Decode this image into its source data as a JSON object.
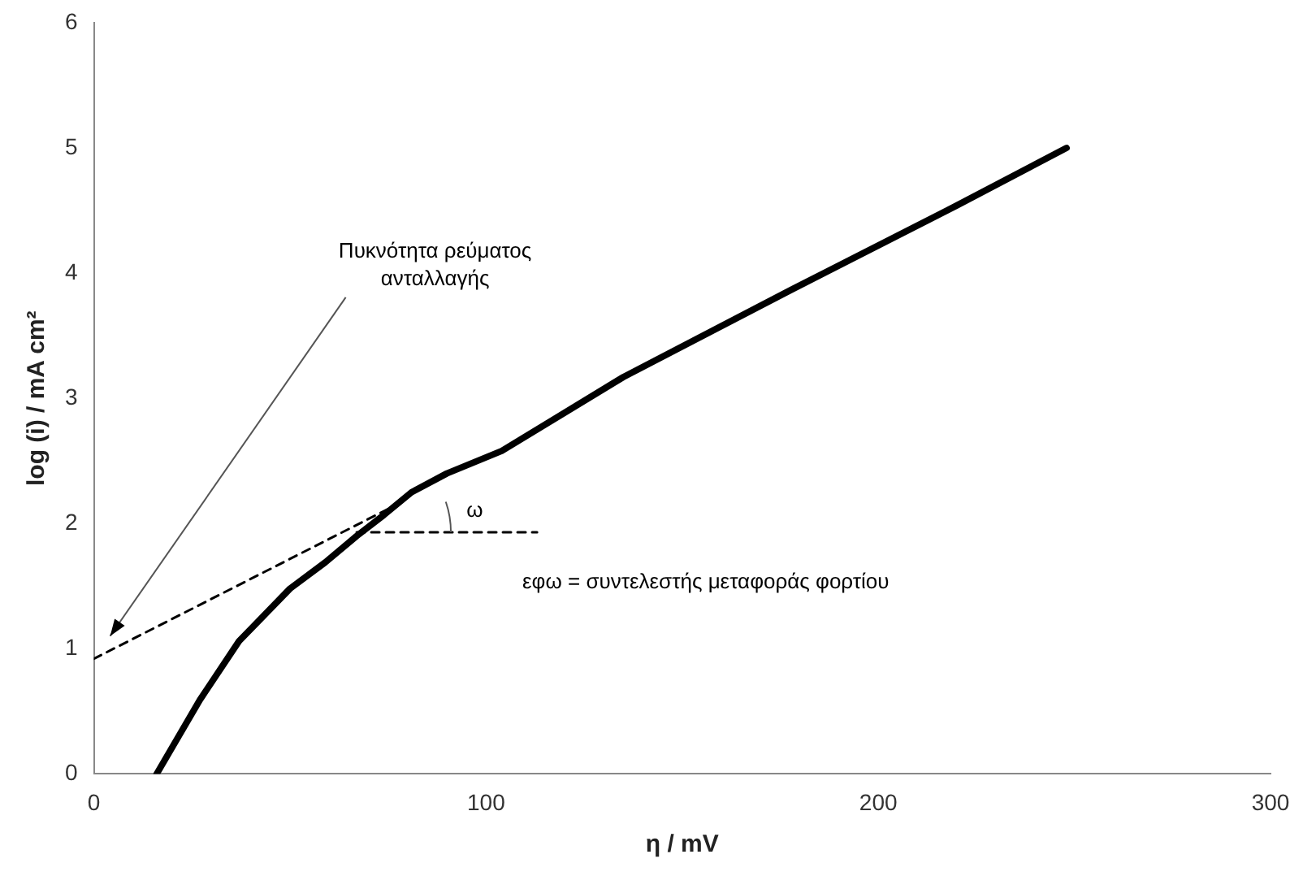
{
  "chart_data": {
    "type": "line",
    "xlabel": "η / mV",
    "ylabel": "log (i) / mA cm²",
    "xlim": [
      0,
      300
    ],
    "xticks": [
      0,
      100,
      200,
      300
    ],
    "ylim": [
      0,
      6
    ],
    "yticks": [
      0,
      1,
      2,
      3,
      4,
      5,
      6
    ],
    "grid": false,
    "legend": false,
    "marker": "none",
    "series": [
      {
        "color": "#000000",
        "line_style": "solid",
        "x": [
          16,
          27,
          37,
          50,
          59,
          67,
          74,
          81,
          90,
          104,
          135,
          178,
          220,
          248
        ],
        "values": [
          0,
          0.59,
          1.06,
          1.48,
          1.69,
          1.9,
          2.07,
          2.25,
          2.4,
          2.58,
          3.17,
          3.87,
          4.54,
          5.0
        ]
      },
      {
        "color": "#000000",
        "line_style": "dashed",
        "x": [
          0,
          79
        ],
        "values": [
          0.92,
          2.18
        ]
      },
      {
        "color": "#000000",
        "line_style": "dashed",
        "x": [
          67,
          113
        ],
        "values": [
          1.93,
          1.93
        ]
      }
    ],
    "annotations": [
      "Πυκνότητα ρεύματος\nανταλλαγής",
      "ω",
      "εφω = συντελεστής μεταφοράς φορτίου"
    ]
  }
}
